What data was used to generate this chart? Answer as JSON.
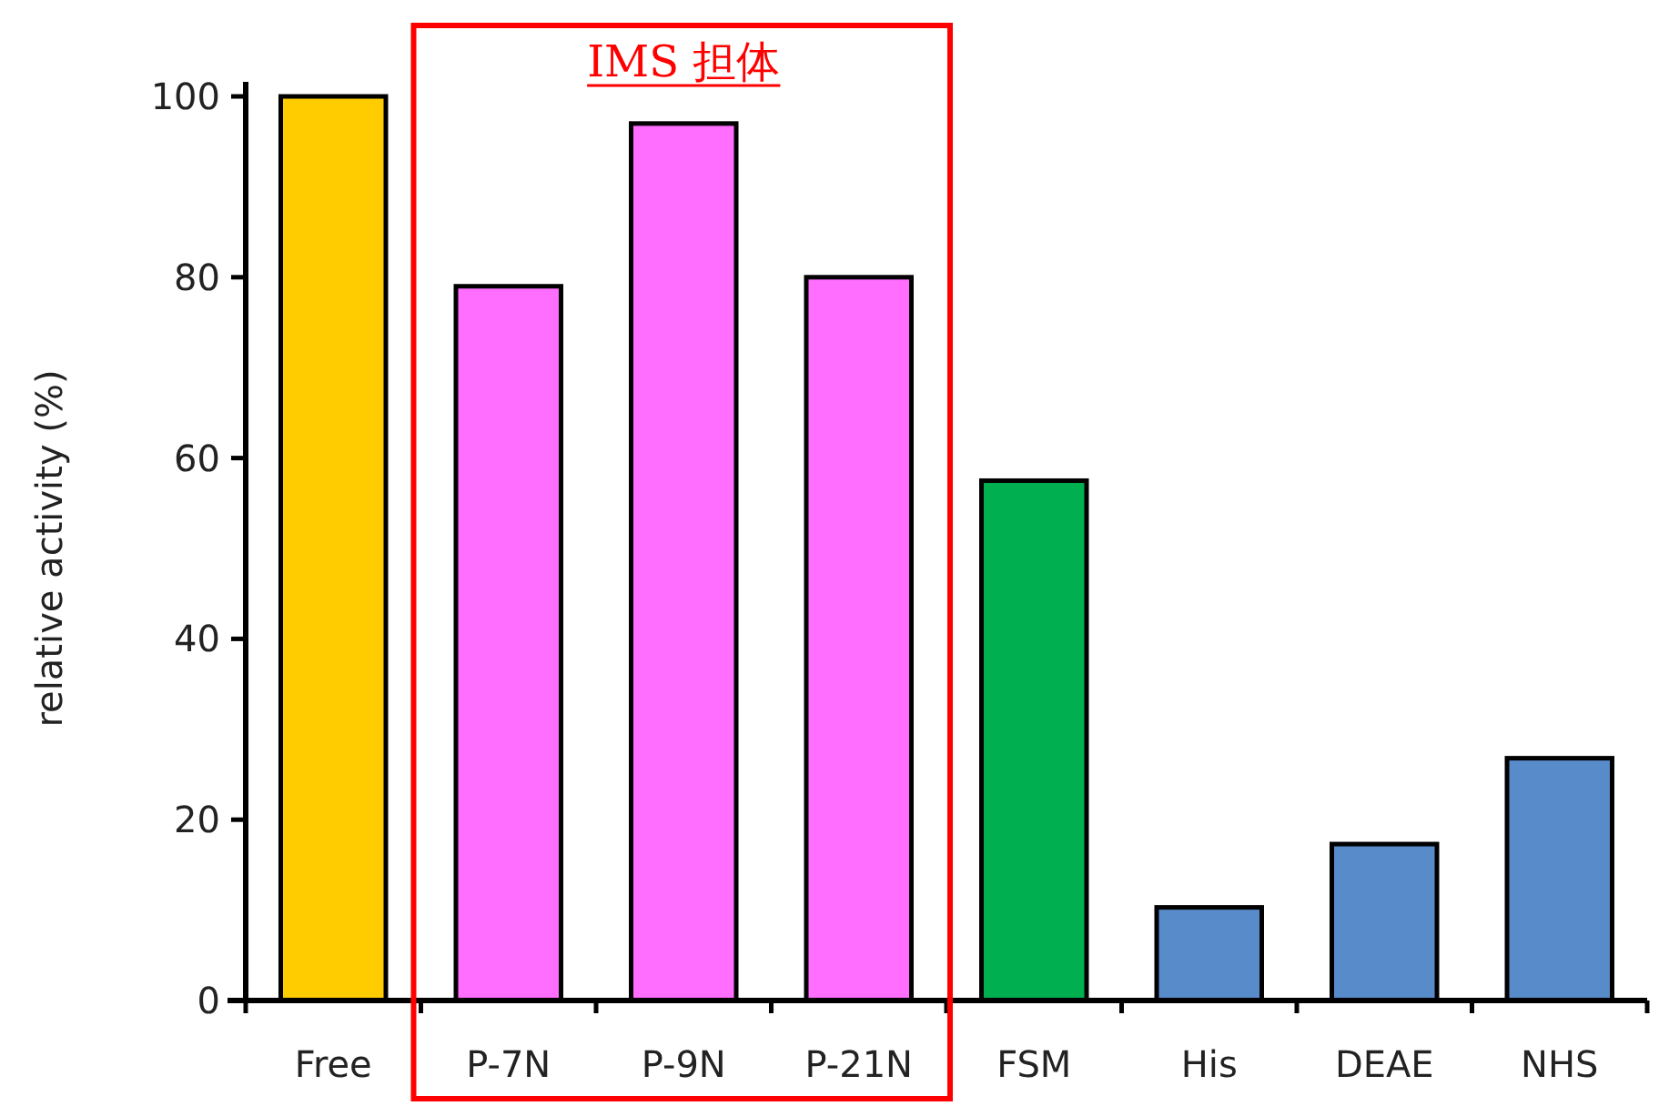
{
  "chart_data": {
    "type": "bar",
    "ylabel": "relative activity (%)",
    "categories": [
      "Free",
      "P-7N",
      "P-9N",
      "P-21N",
      "FSM",
      "His",
      "DEAE",
      "NHS"
    ],
    "values": [
      100,
      79,
      97,
      80,
      57.5,
      10.3,
      17.3,
      26.8
    ],
    "colors": [
      "#ffcc00",
      "#ff6eff",
      "#ff6eff",
      "#ff6eff",
      "#00b050",
      "#588bca",
      "#588bca",
      "#588bca"
    ],
    "ylim": [
      0,
      100
    ],
    "yticks": [
      0,
      20,
      40,
      60,
      80,
      100
    ],
    "grid": false,
    "annotations": [
      "IMS 担体"
    ]
  }
}
